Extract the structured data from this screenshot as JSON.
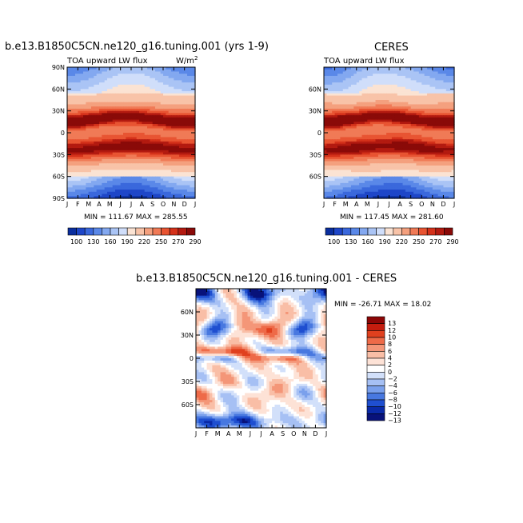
{
  "colors": {
    "abs_scale": [
      "#0a2e9e",
      "#1e46c8",
      "#3a68dc",
      "#5a88e8",
      "#83a8f0",
      "#aac4f5",
      "#d0defa",
      "#fbe3d3",
      "#f8c3a8",
      "#f4a07e",
      "#f07a56",
      "#e85432",
      "#d4311a",
      "#b31a10",
      "#8a0a08"
    ],
    "diff_scale": [
      "#08127a",
      "#0a2aa8",
      "#1f4fd0",
      "#4878e0",
      "#7aa0ec",
      "#a6c0f4",
      "#d2e0fa",
      "#ffffff",
      "#fde2d6",
      "#f9bea6",
      "#f49678",
      "#ee6a48",
      "#e0401e",
      "#c41c0e",
      "#8c0606"
    ]
  },
  "panels": {
    "model": {
      "title": "b.e13.B1850C5CN.ne120_g16.tuning.001 (yrs 1-9)",
      "left_label": "TOA upward LW flux",
      "units": "W/m",
      "units_exp": "2",
      "stats": "MIN = 111.67 MAX = 285.55"
    },
    "obs": {
      "title": "CERES",
      "left_label": "TOA upward LW flux",
      "stats": "MIN = 117.45 MAX = 281.60"
    },
    "diff": {
      "title": "b.e13.B1850C5CN.ne120_g16.tuning.001 - CERES",
      "stats": "MIN = -26.71 MAX = 18.02"
    }
  },
  "chart_data": [
    {
      "type": "heatmap",
      "name": "model",
      "x_tick_labels": [
        "J",
        "F",
        "M",
        "A",
        "M",
        "J",
        "J",
        "A",
        "S",
        "O",
        "N",
        "D",
        "J"
      ],
      "y_tick_labels": [
        "90N",
        "60N",
        "30N",
        "0",
        "30S",
        "60S",
        "90S"
      ],
      "y_ticks_deg": [
        90,
        60,
        30,
        0,
        -30,
        -60,
        -90
      ],
      "ylim": [
        -90,
        90
      ],
      "levels": [
        100,
        115,
        130,
        145,
        160,
        175,
        190,
        205,
        220,
        235,
        250,
        265,
        270,
        280,
        290
      ],
      "colorbar_labels": [
        "100",
        "130",
        "160",
        "190",
        "220",
        "250",
        "270",
        "290"
      ],
      "min": 111.67,
      "max": 285.55
    },
    {
      "type": "heatmap",
      "name": "obs",
      "x_tick_labels": [
        "J",
        "F",
        "M",
        "A",
        "M",
        "J",
        "J",
        "A",
        "S",
        "O",
        "N",
        "D",
        "J"
      ],
      "y_tick_labels": [
        "60N",
        "30N",
        "0",
        "30S",
        "60S"
      ],
      "y_ticks_deg": [
        60,
        30,
        0,
        -30,
        -60
      ],
      "ylim": [
        -90,
        90
      ],
      "levels": [
        100,
        115,
        130,
        145,
        160,
        175,
        190,
        205,
        220,
        235,
        250,
        265,
        270,
        280,
        290
      ],
      "colorbar_labels": [
        "100",
        "130",
        "160",
        "190",
        "220",
        "250",
        "270",
        "290"
      ],
      "min": 117.45,
      "max": 281.6
    },
    {
      "type": "heatmap",
      "name": "diff",
      "x_tick_labels": [
        "J",
        "F",
        "M",
        "A",
        "M",
        "J",
        "J",
        "A",
        "S",
        "O",
        "N",
        "D",
        "J"
      ],
      "y_tick_labels": [
        "60N",
        "30N",
        "0",
        "30S",
        "60S"
      ],
      "y_ticks_deg": [
        60,
        30,
        0,
        -30,
        -60
      ],
      "ylim": [
        -90,
        90
      ],
      "levels": [
        -13,
        -12,
        -10,
        -8,
        -6,
        -4,
        -2,
        0,
        2,
        4,
        6,
        8,
        10,
        12,
        13
      ],
      "colorbar_labels": [
        "13",
        "12",
        "10",
        "8",
        "6",
        "4",
        "2",
        "0",
        "−2",
        "−4",
        "−6",
        "−8",
        "−10",
        "−12",
        "−13"
      ],
      "min": -26.71,
      "max": 18.02
    }
  ]
}
